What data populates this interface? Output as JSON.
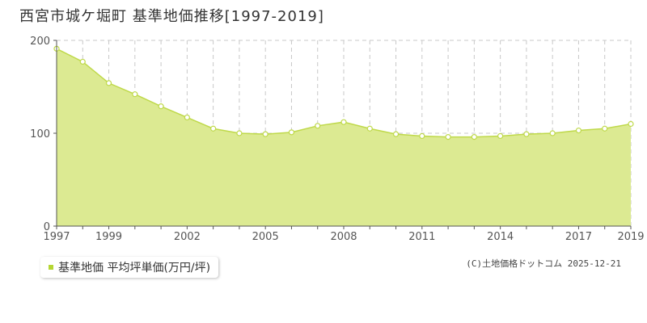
{
  "title": "西宮市城ケ堀町 基準地価推移[1997-2019]",
  "legend": {
    "label": "基準地価 平均坪単価(万円/坪)",
    "swatch_color": "#b5d633"
  },
  "credit": "(C)土地価格ドットコム 2025-12-21",
  "colors": {
    "area_fill": "#dcea92",
    "line": "#bfd94a",
    "grid": "#c8c8c8",
    "axis": "#555555"
  },
  "chart_data": {
    "type": "area",
    "title": "西宮市城ケ堀町 基準地価推移[1997-2019]",
    "series": [
      {
        "name": "基準地価 平均坪単価(万円/坪)",
        "x": [
          1997,
          1998,
          1999,
          2000,
          2001,
          2002,
          2003,
          2004,
          2005,
          2006,
          2007,
          2008,
          2009,
          2010,
          2011,
          2012,
          2013,
          2014,
          2015,
          2016,
          2017,
          2018,
          2019
        ],
        "values": [
          191,
          177,
          154,
          142,
          129,
          117,
          105,
          100,
          99,
          101,
          108,
          112,
          105,
          99,
          97,
          96,
          96,
          97,
          99,
          100,
          103,
          105,
          110
        ]
      }
    ],
    "xlim": [
      1997,
      2019
    ],
    "ylim": [
      0,
      200
    ],
    "yticks": [
      0,
      100,
      200
    ],
    "xticks": [
      1997,
      1999,
      2002,
      2005,
      2008,
      2011,
      2014,
      2017,
      2019
    ],
    "xlabel": "",
    "ylabel": "",
    "grid": true
  }
}
